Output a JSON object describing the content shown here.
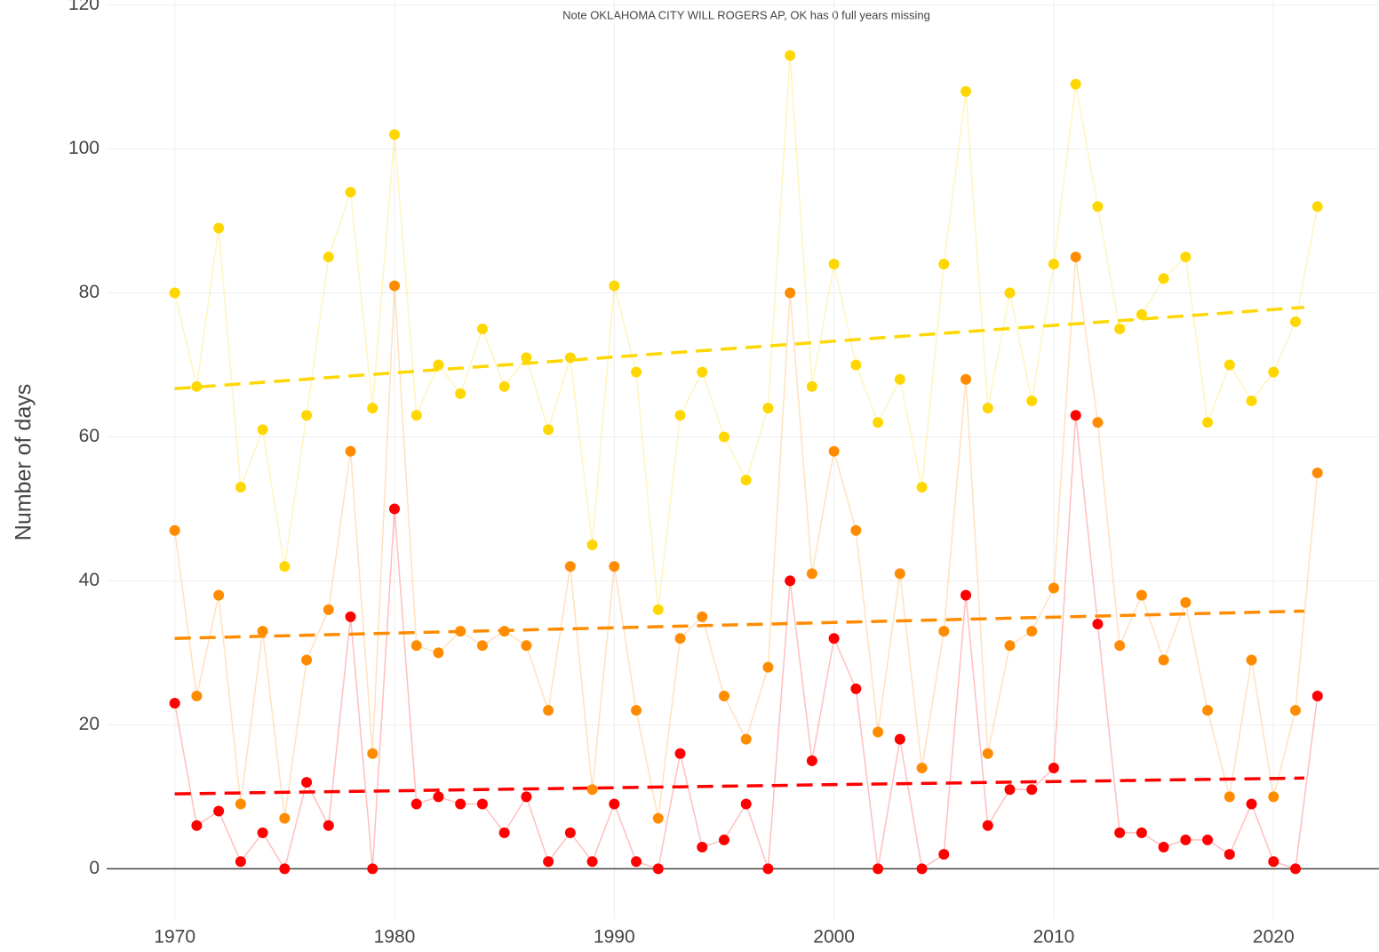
{
  "chart_data": {
    "type": "line",
    "note": "Note OKLAHOMA CITY WILL ROGERS AP, OK has 0 full years missing",
    "y_label": "Number of days",
    "x": [
      1970,
      1971,
      1972,
      1973,
      1974,
      1975,
      1976,
      1977,
      1978,
      1979,
      1980,
      1981,
      1982,
      1983,
      1984,
      1985,
      1986,
      1987,
      1988,
      1989,
      1990,
      1991,
      1992,
      1993,
      1994,
      1995,
      1996,
      1997,
      1998,
      1999,
      2000,
      2001,
      2002,
      2003,
      2004,
      2005,
      2006,
      2007,
      2008,
      2009,
      2010,
      2011,
      2012,
      2013,
      2014,
      2015,
      2016,
      2017,
      2018,
      2019,
      2020,
      2021,
      2022
    ],
    "series": [
      {
        "color": "#FFD700",
        "values": [
          80,
          67,
          89,
          53,
          61,
          42,
          63,
          85,
          94,
          64,
          102,
          63,
          70,
          66,
          75,
          67,
          71,
          61,
          71,
          45,
          81,
          69,
          36,
          63,
          69,
          60,
          54,
          64,
          113,
          67,
          84,
          70,
          62,
          68,
          53,
          84,
          108,
          64,
          80,
          65,
          84,
          109,
          92,
          75,
          77,
          82,
          85,
          62,
          70,
          65,
          69,
          76,
          92
        ],
        "trend": {
          "x": [
            1970,
            2021.4
          ],
          "values": [
            66.7,
            78
          ]
        }
      },
      {
        "color": "#FF8C00",
        "values": [
          47,
          24,
          38,
          9,
          33,
          7,
          29,
          36,
          58,
          16,
          81,
          31,
          30,
          33,
          31,
          33,
          31,
          22,
          42,
          11,
          42,
          22,
          7,
          32,
          35,
          24,
          18,
          28,
          80,
          41,
          58,
          47,
          19,
          41,
          14,
          33,
          68,
          16,
          31,
          33,
          39,
          85,
          62,
          31,
          38,
          29,
          37,
          22,
          10,
          29,
          10,
          22,
          55
        ],
        "trend": {
          "x": [
            1970,
            2021.4
          ],
          "values": [
            32,
            35.8
          ]
        }
      },
      {
        "color": "#FF0000",
        "values": [
          23,
          6,
          8,
          1,
          5,
          0,
          12,
          6,
          35,
          0,
          50,
          9,
          10,
          9,
          9,
          5,
          10,
          1,
          5,
          1,
          9,
          1,
          0,
          16,
          3,
          4,
          9,
          0,
          40,
          15,
          32,
          25,
          0,
          18,
          0,
          2,
          38,
          6,
          11,
          11,
          14,
          63,
          34,
          5,
          5,
          3,
          4,
          4,
          2,
          9,
          1,
          0,
          24
        ],
        "trend": {
          "x": [
            1970,
            2021.4
          ],
          "values": [
            10.4,
            12.6
          ]
        }
      }
    ],
    "xlim": [
      1966.9,
      2024.8
    ],
    "ylim": [
      -7,
      120.7
    ],
    "xticks": [
      1970,
      1980,
      1990,
      2000,
      2010,
      2020
    ],
    "yticks": [
      0,
      20,
      40,
      60,
      80,
      100,
      120
    ],
    "grid": true
  }
}
